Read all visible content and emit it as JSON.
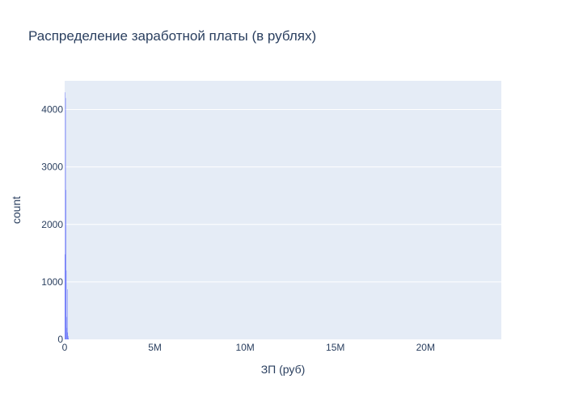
{
  "chart_data": {
    "type": "bar",
    "title": "Распределение заработной платы (в рублях)",
    "xlabel": "ЗП (руб)",
    "ylabel": "count",
    "xlim": [
      0,
      24200000
    ],
    "ylim": [
      0,
      4500
    ],
    "x_ticks": [
      {
        "value": 0,
        "label": "0"
      },
      {
        "value": 5000000,
        "label": "5M"
      },
      {
        "value": 10000000,
        "label": "10M"
      },
      {
        "value": 15000000,
        "label": "15M"
      },
      {
        "value": 20000000,
        "label": "20M"
      }
    ],
    "y_ticks": [
      {
        "value": 0,
        "label": "0"
      },
      {
        "value": 1000,
        "label": "1000"
      },
      {
        "value": 2000,
        "label": "2000"
      },
      {
        "value": 3000,
        "label": "3000"
      },
      {
        "value": 4000,
        "label": "4000"
      }
    ],
    "bin_width": 20000,
    "bars": [
      {
        "x0": 0,
        "x1": 20000,
        "value": 1480
      },
      {
        "x0": 20000,
        "x1": 40000,
        "value": 4300
      },
      {
        "x0": 40000,
        "x1": 60000,
        "value": 4200
      },
      {
        "x0": 60000,
        "x1": 80000,
        "value": 2600
      },
      {
        "x0": 80000,
        "x1": 100000,
        "value": 1200
      },
      {
        "x0": 100000,
        "x1": 120000,
        "value": 390
      },
      {
        "x0": 120000,
        "x1": 140000,
        "value": 200
      },
      {
        "x0": 140000,
        "x1": 160000,
        "value": 870
      },
      {
        "x0": 160000,
        "x1": 180000,
        "value": 120
      },
      {
        "x0": 180000,
        "x1": 200000,
        "value": 60
      },
      {
        "x0": 200000,
        "x1": 220000,
        "value": 20
      }
    ],
    "grid": true,
    "colors": {
      "bar": "#636efa",
      "plot_bg": "#e5ecf6",
      "grid": "#ffffff",
      "text": "#2a3f5f"
    }
  }
}
